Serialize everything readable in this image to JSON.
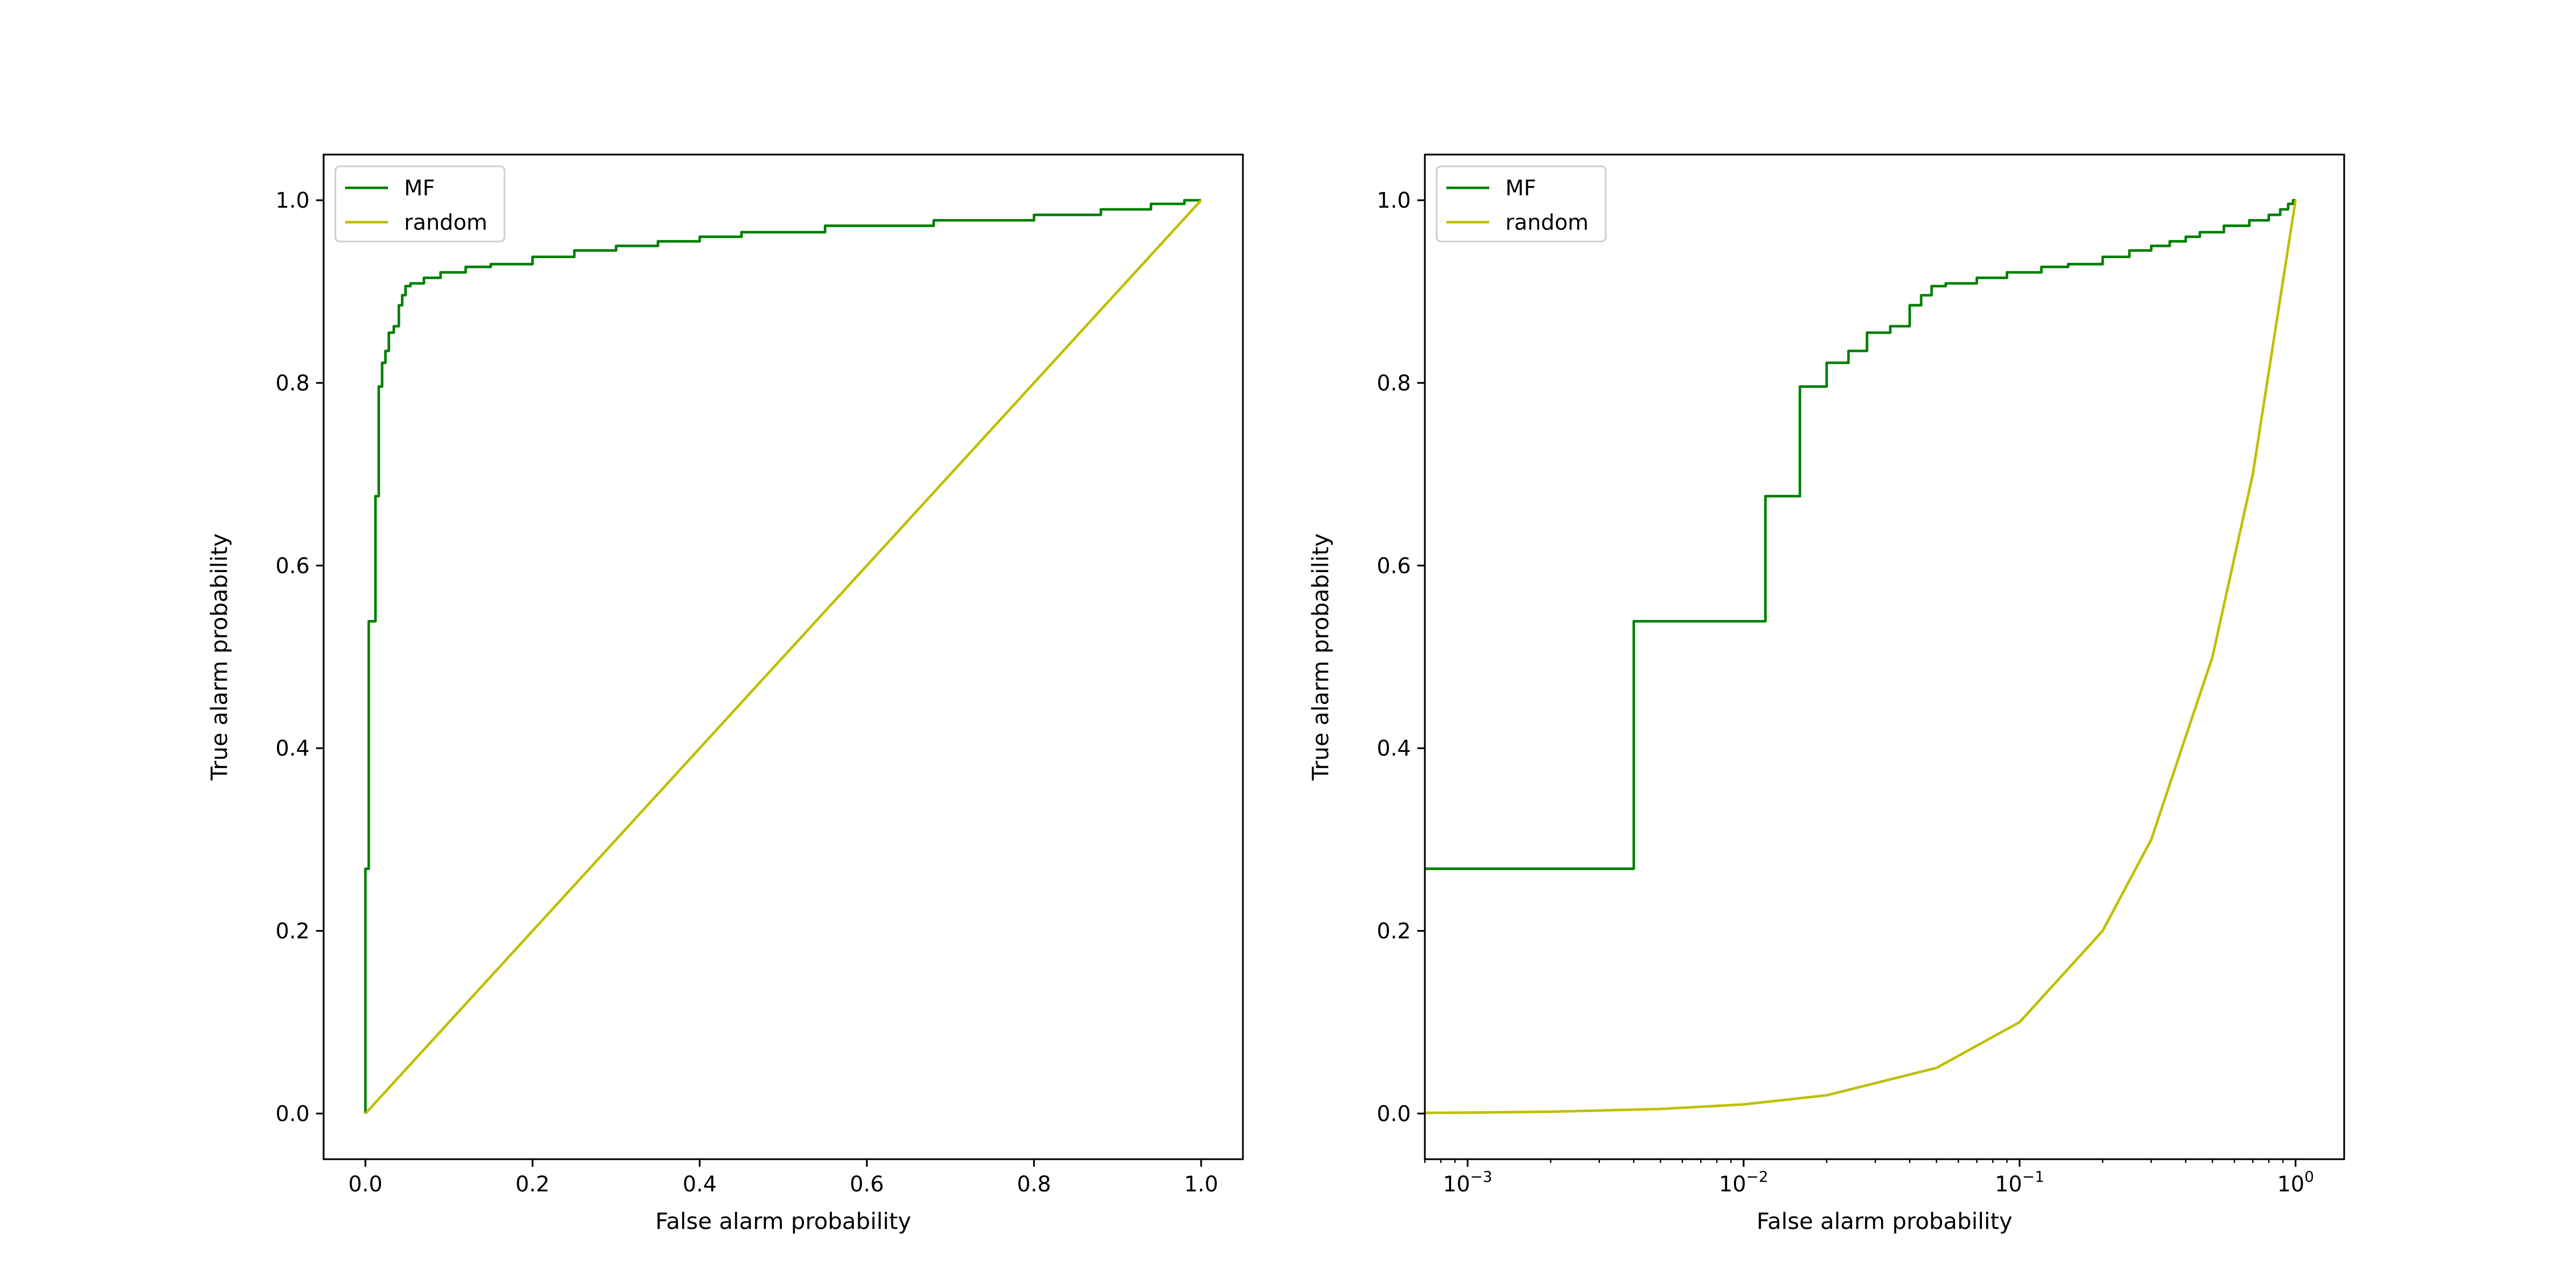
{
  "chart_data": [
    {
      "type": "line",
      "xlabel": "False alarm probability",
      "ylabel": "True alarm probability",
      "xscale": "linear",
      "xlim": [
        -0.05,
        1.05
      ],
      "ylim": [
        -0.05,
        1.05
      ],
      "xticks": [
        0.0,
        0.2,
        0.4,
        0.6,
        0.8,
        1.0
      ],
      "xtick_labels": [
        "0.0",
        "0.2",
        "0.4",
        "0.6",
        "0.8",
        "1.0"
      ],
      "yticks": [
        0.0,
        0.2,
        0.4,
        0.6,
        0.8,
        1.0
      ],
      "ytick_labels": [
        "0.0",
        "0.2",
        "0.4",
        "0.6",
        "0.8",
        "1.0"
      ],
      "grid": false,
      "legend": "upper-left",
      "series": [
        {
          "name": "MF",
          "color": "#008000",
          "x": [
            0.0,
            0.0,
            0.004,
            0.004,
            0.012,
            0.012,
            0.016,
            0.016,
            0.02,
            0.02,
            0.024,
            0.024,
            0.028,
            0.028,
            0.034,
            0.034,
            0.04,
            0.04,
            0.044,
            0.044,
            0.048,
            0.048,
            0.054,
            0.054,
            0.07,
            0.07,
            0.09,
            0.09,
            0.12,
            0.12,
            0.15,
            0.15,
            0.2,
            0.2,
            0.25,
            0.25,
            0.3,
            0.3,
            0.35,
            0.35,
            0.4,
            0.4,
            0.45,
            0.45,
            0.55,
            0.55,
            0.68,
            0.68,
            0.8,
            0.8,
            0.88,
            0.88,
            0.94,
            0.94,
            0.98,
            0.98,
            1.0
          ],
          "y": [
            0.0,
            0.268,
            0.268,
            0.539,
            0.539,
            0.676,
            0.676,
            0.796,
            0.796,
            0.822,
            0.822,
            0.835,
            0.835,
            0.855,
            0.855,
            0.862,
            0.862,
            0.885,
            0.885,
            0.896,
            0.896,
            0.906,
            0.906,
            0.909,
            0.909,
            0.915,
            0.915,
            0.921,
            0.921,
            0.927,
            0.927,
            0.93,
            0.93,
            0.938,
            0.938,
            0.945,
            0.945,
            0.95,
            0.95,
            0.955,
            0.955,
            0.96,
            0.96,
            0.965,
            0.965,
            0.972,
            0.972,
            0.978,
            0.978,
            0.984,
            0.984,
            0.99,
            0.99,
            0.996,
            0.996,
            1.0,
            1.0
          ]
        },
        {
          "name": "random",
          "color": "#bfbf00",
          "x": [
            0.0,
            1.0
          ],
          "y": [
            0.0,
            1.0
          ]
        }
      ]
    },
    {
      "type": "line",
      "xlabel": "False alarm probability",
      "ylabel": "True alarm probability",
      "xscale": "log",
      "xlim": [
        0.0007,
        1.5
      ],
      "ylim": [
        -0.05,
        1.05
      ],
      "xticks": [
        0.001,
        0.01,
        0.1,
        1
      ],
      "xtick_labels": [
        [
          "10",
          "−3"
        ],
        [
          "10",
          "−2"
        ],
        [
          "10",
          "−1"
        ],
        [
          "10",
          "0"
        ]
      ],
      "yticks": [
        0.0,
        0.2,
        0.4,
        0.6,
        0.8,
        1.0
      ],
      "ytick_labels": [
        "0.0",
        "0.2",
        "0.4",
        "0.6",
        "0.8",
        "1.0"
      ],
      "grid": false,
      "legend": "upper-left",
      "series": [
        {
          "name": "MF",
          "color": "#008000",
          "x": [
            0.0007,
            0.004,
            0.004,
            0.012,
            0.012,
            0.016,
            0.016,
            0.02,
            0.02,
            0.024,
            0.024,
            0.028,
            0.028,
            0.034,
            0.034,
            0.04,
            0.04,
            0.044,
            0.044,
            0.048,
            0.048,
            0.054,
            0.054,
            0.07,
            0.07,
            0.09,
            0.09,
            0.12,
            0.12,
            0.15,
            0.15,
            0.2,
            0.2,
            0.25,
            0.25,
            0.3,
            0.3,
            0.35,
            0.35,
            0.4,
            0.4,
            0.45,
            0.45,
            0.55,
            0.55,
            0.68,
            0.68,
            0.8,
            0.8,
            0.88,
            0.88,
            0.94,
            0.94,
            0.98,
            0.98,
            1.0
          ],
          "y": [
            0.268,
            0.268,
            0.539,
            0.539,
            0.676,
            0.676,
            0.796,
            0.796,
            0.822,
            0.822,
            0.835,
            0.835,
            0.855,
            0.855,
            0.862,
            0.862,
            0.885,
            0.885,
            0.896,
            0.896,
            0.906,
            0.906,
            0.909,
            0.909,
            0.915,
            0.915,
            0.921,
            0.921,
            0.927,
            0.927,
            0.93,
            0.93,
            0.938,
            0.938,
            0.945,
            0.945,
            0.95,
            0.95,
            0.955,
            0.955,
            0.96,
            0.96,
            0.965,
            0.965,
            0.972,
            0.972,
            0.978,
            0.978,
            0.984,
            0.984,
            0.99,
            0.99,
            0.996,
            0.996,
            1.0,
            1.0
          ]
        },
        {
          "name": "random",
          "color": "#bfbf00",
          "x": [
            0.0007,
            0.001,
            0.002,
            0.005,
            0.01,
            0.02,
            0.05,
            0.1,
            0.2,
            0.3,
            0.5,
            0.7,
            1.0
          ],
          "y": [
            0.0007,
            0.001,
            0.002,
            0.005,
            0.01,
            0.02,
            0.05,
            0.1,
            0.2,
            0.3,
            0.5,
            0.7,
            1.0
          ]
        }
      ]
    }
  ]
}
